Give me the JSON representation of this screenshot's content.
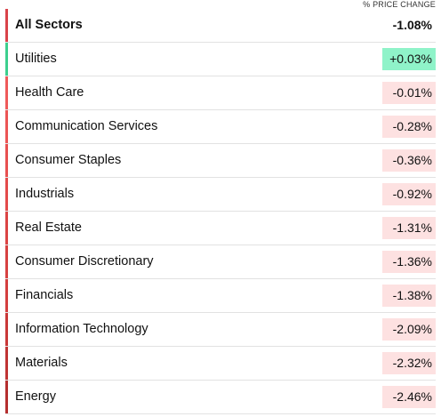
{
  "header": {
    "title": "% PRICE CHANGE"
  },
  "summary": {
    "name": "All Sectors",
    "change": "-1.08%"
  },
  "rows": [
    {
      "name": "Utilities",
      "change": "+0.03%"
    },
    {
      "name": "Health Care",
      "change": "-0.01%"
    },
    {
      "name": "Communication Services",
      "change": "-0.28%"
    },
    {
      "name": "Consumer Staples",
      "change": "-0.36%"
    },
    {
      "name": "Industrials",
      "change": "-0.92%"
    },
    {
      "name": "Real Estate",
      "change": "-1.31%"
    },
    {
      "name": "Consumer Discretionary",
      "change": "-1.36%"
    },
    {
      "name": "Financials",
      "change": "-1.38%"
    },
    {
      "name": "Information Technology",
      "change": "-2.09%"
    },
    {
      "name": "Materials",
      "change": "-2.32%"
    },
    {
      "name": "Energy",
      "change": "-2.46%"
    }
  ]
}
